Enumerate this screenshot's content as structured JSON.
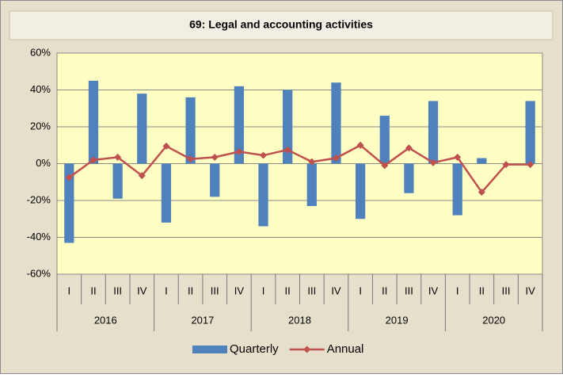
{
  "chart_data": {
    "type": "bar",
    "title": "69: Legal and accounting activities",
    "categories": [
      "I",
      "II",
      "III",
      "IV",
      "I",
      "II",
      "III",
      "IV",
      "I",
      "II",
      "III",
      "IV",
      "I",
      "II",
      "III",
      "IV",
      "I",
      "II",
      "III",
      "IV"
    ],
    "groups": [
      "2016",
      "2017",
      "2018",
      "2019",
      "2020"
    ],
    "series": [
      {
        "name": "Quarterly",
        "type": "bar",
        "color": "#4f81bd",
        "values": [
          -43,
          45,
          -19,
          38,
          -32,
          36,
          -18,
          42,
          -34,
          40,
          -23,
          44,
          -30,
          26,
          -16,
          34,
          -28,
          3,
          0,
          34
        ]
      },
      {
        "name": "Annual",
        "type": "line",
        "color": "#c0504d",
        "values": [
          -7.5,
          2,
          3.5,
          -6.5,
          9.5,
          2.5,
          3.5,
          6.5,
          4.5,
          7.5,
          1,
          3,
          10,
          -1,
          8.5,
          0.5,
          3.5,
          -15.5,
          -0.5,
          -0.5
        ]
      }
    ],
    "ylim": [
      -60,
      60
    ],
    "yticks": [
      {
        "value": -60,
        "label": "-60%"
      },
      {
        "value": -40,
        "label": "-40%"
      },
      {
        "value": -20,
        "label": "-20%"
      },
      {
        "value": 0,
        "label": "0%"
      },
      {
        "value": 20,
        "label": "20%"
      },
      {
        "value": 40,
        "label": "40%"
      },
      {
        "value": 60,
        "label": "60%"
      }
    ],
    "grid": true,
    "legend": "bottom"
  }
}
